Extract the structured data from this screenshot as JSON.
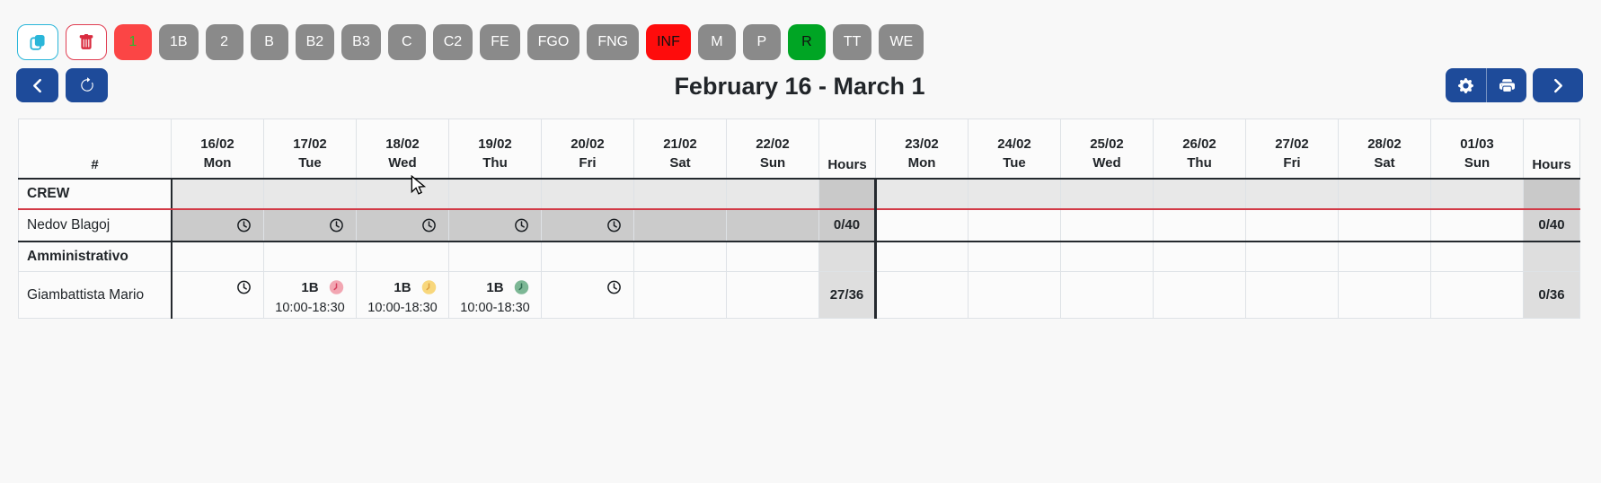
{
  "toolbar": {
    "copy_button": {
      "icon": "copy-icon",
      "accent": "#2ab6d9"
    },
    "delete_button": {
      "icon": "trash-icon",
      "accent": "#e03e52"
    },
    "shift_buttons": [
      {
        "label": "1",
        "bg": "#fb4545",
        "fg": "#2eb82e"
      },
      {
        "label": "1B",
        "bg": "#8a8a8a",
        "fg": "#ffffff"
      },
      {
        "label": "2",
        "bg": "#8a8a8a",
        "fg": "#ffffff"
      },
      {
        "label": "B",
        "bg": "#8a8a8a",
        "fg": "#ffffff"
      },
      {
        "label": "B2",
        "bg": "#8a8a8a",
        "fg": "#ffffff"
      },
      {
        "label": "B3",
        "bg": "#8a8a8a",
        "fg": "#ffffff"
      },
      {
        "label": "C",
        "bg": "#8a8a8a",
        "fg": "#ffffff"
      },
      {
        "label": "C2",
        "bg": "#8a8a8a",
        "fg": "#ffffff"
      },
      {
        "label": "FE",
        "bg": "#8a8a8a",
        "fg": "#ffffff"
      },
      {
        "label": "FGO",
        "bg": "#8a8a8a",
        "fg": "#ffffff"
      },
      {
        "label": "FNG",
        "bg": "#8a8a8a",
        "fg": "#ffffff"
      },
      {
        "label": "INF",
        "bg": "#fe0c0c",
        "fg": "#111111"
      },
      {
        "label": "M",
        "bg": "#8a8a8a",
        "fg": "#ffffff"
      },
      {
        "label": "P",
        "bg": "#8a8a8a",
        "fg": "#ffffff"
      },
      {
        "label": "R",
        "bg": "#00a524",
        "fg": "#111111"
      },
      {
        "label": "TT",
        "bg": "#8a8a8a",
        "fg": "#ffffff"
      },
      {
        "label": "WE",
        "bg": "#8a8a8a",
        "fg": "#ffffff"
      }
    ]
  },
  "nav": {
    "title": "February 16 - March 1",
    "accent": "#1e4b9a"
  },
  "schedule": {
    "corner_label": "#",
    "hours_label": "Hours",
    "weeks": [
      {
        "days": [
          {
            "date": "16/02",
            "dow": "Mon"
          },
          {
            "date": "17/02",
            "dow": "Tue"
          },
          {
            "date": "18/02",
            "dow": "Wed"
          },
          {
            "date": "19/02",
            "dow": "Thu"
          },
          {
            "date": "20/02",
            "dow": "Fri"
          },
          {
            "date": "21/02",
            "dow": "Sat"
          },
          {
            "date": "22/02",
            "dow": "Sun"
          }
        ]
      },
      {
        "days": [
          {
            "date": "23/02",
            "dow": "Mon"
          },
          {
            "date": "24/02",
            "dow": "Tue"
          },
          {
            "date": "25/02",
            "dow": "Wed"
          },
          {
            "date": "26/02",
            "dow": "Thu"
          },
          {
            "date": "27/02",
            "dow": "Fri"
          },
          {
            "date": "28/02",
            "dow": "Sat"
          },
          {
            "date": "01/03",
            "dow": "Sun"
          }
        ]
      }
    ],
    "clock_styles": {
      "outline": {
        "fill": "none",
        "hand": "#1b1f23"
      },
      "pink": {
        "fill": "#f2a6b2",
        "hand": "#d5405e"
      },
      "yellow": {
        "fill": "#f8d77c",
        "hand": "#dd9f3e"
      },
      "green": {
        "fill": "#7cb795",
        "hand": "#2f6e52"
      }
    },
    "groups": [
      {
        "name": "CREW",
        "days_bg": "#e8e8e8",
        "hours_bg": "#c9c9c9",
        "divider_color": "#d23a47",
        "thick_bottom": true,
        "members": [
          {
            "name": "Nedov Blagoj",
            "weeks": [
              {
                "days_bg": "#cbcbcb",
                "hours": "0/40",
                "hours_bg": "#cbcbcb",
                "cells": [
                  {
                    "clock": "outline"
                  },
                  {
                    "clock": "outline"
                  },
                  {
                    "clock": "outline"
                  },
                  {
                    "clock": "outline"
                  },
                  {
                    "clock": "outline"
                  },
                  {},
                  {}
                ]
              },
              {
                "days_bg": "",
                "hours": "0/40",
                "hours_bg": "#d4d4d4",
                "cells": [
                  {},
                  {},
                  {},
                  {},
                  {},
                  {},
                  {}
                ]
              }
            ]
          }
        ]
      },
      {
        "name": "Amministrativo",
        "days_bg": "",
        "hours_bg": "#dedede",
        "divider_color": "",
        "thick_bottom": false,
        "members": [
          {
            "name": "Giambattista Mario",
            "weeks": [
              {
                "days_bg": "",
                "hours": "27/36",
                "hours_bg": "#dedede",
                "cells": [
                  {
                    "clock": "outline"
                  },
                  {
                    "shift": "1B",
                    "time": "10:00-18:30",
                    "clock": "pink"
                  },
                  {
                    "shift": "1B",
                    "time": "10:00-18:30",
                    "clock": "yellow"
                  },
                  {
                    "shift": "1B",
                    "time": "10:00-18:30",
                    "clock": "green"
                  },
                  {
                    "clock": "outline"
                  },
                  {},
                  {}
                ]
              },
              {
                "days_bg": "",
                "hours": "0/36",
                "hours_bg": "#dedede",
                "cells": [
                  {},
                  {},
                  {},
                  {},
                  {},
                  {},
                  {}
                ]
              }
            ]
          }
        ]
      }
    ]
  }
}
